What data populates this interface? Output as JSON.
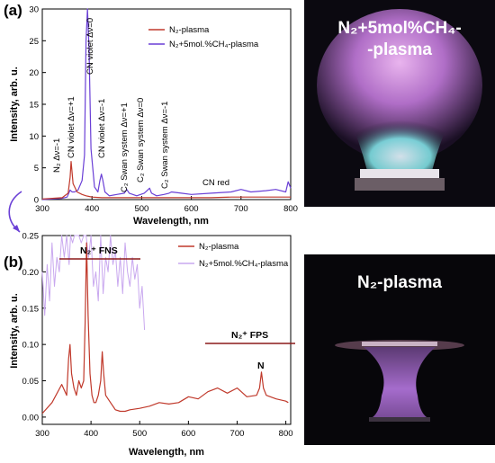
{
  "colors": {
    "n2_series": "#c0392b",
    "ch4_top": "#6a3fd6",
    "ch4_bottom": "#c9a8ef",
    "annotation_line": "#8b1a1a"
  },
  "panel_a": {
    "letter": "(a)",
    "photo_title": "N₂+5mol%CH₄-",
    "photo_title_2": "-plasma",
    "annotations": [
      "N₂ Δν=-1",
      "CN violet Δν=+1",
      "CN violet Δν=0",
      "CN violet Δν=-1",
      "C₂ Swan system Δν=+1",
      "C₂ Swan system Δν=0",
      "C₂ Swan system Δν=-1",
      "CN red"
    ],
    "chart_data": {
      "type": "line",
      "xlabel": "Wavelength, nm",
      "ylabel": "Intensity, arb. u.",
      "xlim": [
        300,
        800
      ],
      "ylim": [
        0,
        30
      ],
      "xticks": [
        300,
        400,
        500,
        600,
        700,
        800
      ],
      "yticks": [
        0,
        5,
        10,
        15,
        20,
        25,
        30
      ],
      "legend_position": "top-right",
      "series": [
        {
          "name": "N₂-plasma",
          "x": [
            300,
            340,
            352,
            356,
            358,
            362,
            370,
            380,
            388,
            394,
            400,
            420,
            440,
            460,
            480,
            500,
            520,
            540,
            560,
            600,
            640,
            680,
            720,
            760,
            790,
            800
          ],
          "y": [
            0.1,
            0.3,
            1.0,
            3.5,
            6.0,
            2.5,
            1.2,
            0.8,
            0.6,
            0.5,
            0.4,
            0.3,
            0.3,
            0.3,
            0.3,
            0.3,
            0.3,
            0.3,
            0.3,
            0.3,
            0.3,
            0.4,
            0.4,
            0.4,
            0.4,
            0.4
          ]
        },
        {
          "name": "N₂+5mol.%CH₄-plasma",
          "x": [
            300,
            320,
            340,
            350,
            356,
            360,
            365,
            372,
            380,
            385,
            388,
            391,
            394,
            398,
            405,
            412,
            416,
            419,
            422,
            426,
            435,
            450,
            465,
            470,
            475,
            490,
            505,
            512,
            516,
            520,
            530,
            545,
            555,
            560,
            580,
            600,
            640,
            680,
            700,
            720,
            750,
            770,
            790,
            795,
            800
          ],
          "y": [
            0.0,
            0.1,
            0.2,
            0.4,
            1.5,
            1.2,
            1.2,
            1.5,
            3.0,
            7.0,
            25.0,
            30.0,
            24.0,
            8.0,
            2.0,
            1.2,
            3.0,
            4.0,
            3.0,
            1.2,
            0.6,
            0.8,
            1.0,
            1.6,
            1.0,
            0.6,
            1.0,
            1.5,
            1.8,
            1.0,
            0.6,
            0.8,
            1.0,
            1.2,
            1.0,
            0.8,
            1.0,
            1.2,
            1.6,
            1.2,
            1.4,
            1.6,
            1.2,
            2.8,
            1.8
          ]
        }
      ]
    }
  },
  "panel_b": {
    "letter": "(b)",
    "photo_title": "N₂-plasma",
    "fns_label": "N₂⁺ FNS",
    "fps_label": "N₂⁺ FPS",
    "n_label": "N",
    "chart_data": {
      "type": "line",
      "xlabel": "Wavelength, nm",
      "ylabel": "Intensity, arb. u.",
      "xlim": [
        300,
        810
      ],
      "ylim": [
        -0.01,
        0.25
      ],
      "xticks": [
        300,
        400,
        500,
        600,
        700,
        800
      ],
      "yticks": [
        0.0,
        0.05,
        0.1,
        0.15,
        0.2,
        0.25
      ],
      "legend_position": "top-right",
      "series": [
        {
          "name": "N₂-plasma",
          "x": [
            300,
            320,
            340,
            350,
            354,
            357,
            360,
            365,
            370,
            375,
            380,
            385,
            388,
            391,
            394,
            398,
            402,
            406,
            410,
            415,
            420,
            423,
            426,
            430,
            440,
            450,
            460,
            470,
            480,
            500,
            520,
            540,
            560,
            580,
            600,
            620,
            640,
            660,
            680,
            700,
            720,
            740,
            746,
            750,
            754,
            760,
            780,
            800,
            805
          ],
          "y": [
            0.005,
            0.02,
            0.045,
            0.03,
            0.08,
            0.1,
            0.06,
            0.04,
            0.03,
            0.05,
            0.04,
            0.05,
            0.13,
            0.24,
            0.14,
            0.06,
            0.03,
            0.02,
            0.02,
            0.03,
            0.05,
            0.09,
            0.06,
            0.03,
            0.02,
            0.01,
            0.008,
            0.008,
            0.01,
            0.012,
            0.015,
            0.02,
            0.018,
            0.02,
            0.028,
            0.025,
            0.035,
            0.04,
            0.033,
            0.04,
            0.028,
            0.03,
            0.04,
            0.062,
            0.04,
            0.03,
            0.025,
            0.022,
            0.02
          ]
        },
        {
          "name": "N₂+5mol.%CH₄-plasma",
          "x": [
            300,
            305,
            310,
            315,
            320,
            325,
            330,
            335,
            340,
            345,
            350,
            355,
            358,
            362,
            366,
            370,
            375,
            380,
            385,
            390,
            395,
            400,
            405,
            410,
            415,
            420,
            425,
            430,
            435,
            440,
            445,
            450,
            455,
            460,
            465,
            470,
            475,
            480,
            485,
            490,
            495,
            500,
            505,
            510
          ],
          "y": [
            0.2,
            0.14,
            0.21,
            0.16,
            0.24,
            0.18,
            0.22,
            0.2,
            0.25,
            0.22,
            0.25,
            0.21,
            0.25,
            0.24,
            0.25,
            0.25,
            0.25,
            0.24,
            0.25,
            0.25,
            0.22,
            0.25,
            0.18,
            0.2,
            0.16,
            0.25,
            0.17,
            0.22,
            0.2,
            0.25,
            0.21,
            0.23,
            0.18,
            0.22,
            0.17,
            0.24,
            0.2,
            0.18,
            0.22,
            0.19,
            0.21,
            0.15,
            0.18,
            0.12
          ]
        }
      ]
    }
  }
}
